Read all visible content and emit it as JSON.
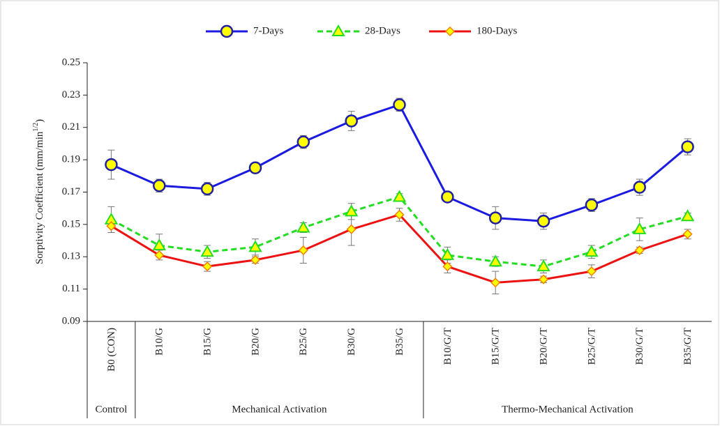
{
  "chart_data": {
    "type": "line",
    "ylabel": {
      "text": "Sorptivity Coefficient (mm/min",
      "sup": "1/2",
      "end": ")"
    },
    "categories": [
      "B0 (CON)",
      "B10/G",
      "B15/G",
      "B20/G",
      "B25/G",
      "B30/G",
      "B35/G",
      "B10/G/T",
      "B15/G/T",
      "B20/G/T",
      "B25/G/T",
      "B30/G/T",
      "B35/G/T"
    ],
    "groups": [
      {
        "label": "Control",
        "span": 1
      },
      {
        "label": "Mechanical Activation",
        "span": 6
      },
      {
        "label": "Thermo-Mechanical Activation",
        "span": 6
      }
    ],
    "series": [
      {
        "name": "7-Days",
        "color": "#1a1ae0",
        "marker": "circle",
        "marker_fill": "#ffff00",
        "dashed": false,
        "values": [
          0.187,
          0.174,
          0.172,
          0.185,
          0.201,
          0.214,
          0.224,
          0.167,
          0.154,
          0.152,
          0.162,
          0.173,
          0.198
        ],
        "errors": [
          0.009,
          0.004,
          0.004,
          0.002,
          0.004,
          0.006,
          0.004,
          0.002,
          0.007,
          0.005,
          0.004,
          0.005,
          0.005
        ]
      },
      {
        "name": "28-Days",
        "color": "#22dd22",
        "marker": "triangle",
        "marker_fill": "#ffff00",
        "dashed": true,
        "values": [
          0.153,
          0.137,
          0.133,
          0.136,
          0.148,
          0.158,
          0.167,
          0.131,
          0.127,
          0.124,
          0.133,
          0.147,
          0.155
        ],
        "errors": [
          0.008,
          0.007,
          0.004,
          0.005,
          0.003,
          0.005,
          0.002,
          0.005,
          0.003,
          0.004,
          0.004,
          0.007,
          0.002
        ]
      },
      {
        "name": "180-Days",
        "color": "#ee1111",
        "marker": "diamond",
        "marker_fill": "#ffff00",
        "dashed": false,
        "values": [
          0.149,
          0.131,
          0.124,
          0.128,
          0.134,
          0.147,
          0.156,
          0.124,
          0.114,
          0.116,
          0.121,
          0.134,
          0.144
        ],
        "errors": [
          0.004,
          0.003,
          0.003,
          0.002,
          0.008,
          0.01,
          0.004,
          0.004,
          0.007,
          0.002,
          0.004,
          0.002,
          0.003
        ]
      }
    ],
    "ylim": [
      0.09,
      0.25
    ],
    "yticks": [
      0.09,
      0.11,
      0.13,
      0.15,
      0.17,
      0.19,
      0.21,
      0.23,
      0.25
    ],
    "legend": "top"
  }
}
